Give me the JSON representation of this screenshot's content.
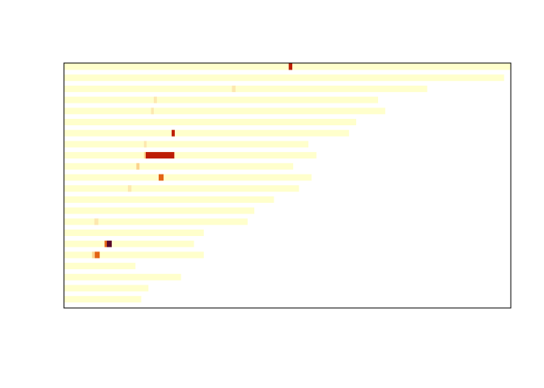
{
  "chart_data": {
    "type": "heatmap",
    "title": "",
    "xlabel": "",
    "ylabel": "",
    "grid": false,
    "legend": "none",
    "xlim": [
      0,
      100
    ],
    "colors": {
      "base": "#ffffcc",
      "pale": "#fde8b0",
      "light": "#fbd38d",
      "orange": "#e36414",
      "red": "#bd1e05",
      "dark": "#5a0a2a"
    },
    "rows": [
      {
        "length": 100,
        "marks": [
          {
            "start": 50.3,
            "end": 51.1,
            "color": "red"
          }
        ]
      },
      {
        "length": 98.5,
        "marks": []
      },
      {
        "length": 81.3,
        "marks": [
          {
            "start": 37.6,
            "end": 38.4,
            "color": "pale"
          }
        ]
      },
      {
        "length": 70.3,
        "marks": [
          {
            "start": 20.1,
            "end": 20.8,
            "color": "pale"
          }
        ]
      },
      {
        "length": 71.9,
        "marks": [
          {
            "start": 19.5,
            "end": 20.1,
            "color": "pale"
          }
        ]
      },
      {
        "length": 65.4,
        "marks": []
      },
      {
        "length": 63.8,
        "marks": [
          {
            "start": 24.1,
            "end": 24.8,
            "color": "red"
          }
        ]
      },
      {
        "length": 54.7,
        "marks": [
          {
            "start": 17.9,
            "end": 18.5,
            "color": "pale"
          }
        ]
      },
      {
        "length": 56.5,
        "marks": [
          {
            "start": 17.9,
            "end": 18.3,
            "color": "light"
          },
          {
            "start": 18.3,
            "end": 24.7,
            "color": "red"
          }
        ]
      },
      {
        "length": 51.3,
        "marks": [
          {
            "start": 16.2,
            "end": 16.9,
            "color": "light"
          }
        ]
      },
      {
        "length": 55.4,
        "marks": [
          {
            "start": 21.2,
            "end": 22.3,
            "color": "orange"
          }
        ]
      },
      {
        "length": 52.6,
        "marks": [
          {
            "start": 14.3,
            "end": 15.1,
            "color": "pale"
          }
        ]
      },
      {
        "length": 47.0,
        "marks": []
      },
      {
        "length": 42.6,
        "marks": []
      },
      {
        "length": 41.1,
        "marks": [
          {
            "start": 6.8,
            "end": 7.7,
            "color": "pale"
          }
        ]
      },
      {
        "length": 31.3,
        "marks": []
      },
      {
        "length": 29.1,
        "marks": [
          {
            "start": 9.1,
            "end": 9.6,
            "color": "orange"
          },
          {
            "start": 9.6,
            "end": 10.7,
            "color": "dark"
          }
        ]
      },
      {
        "length": 31.3,
        "marks": [
          {
            "start": 6.3,
            "end": 6.9,
            "color": "light"
          },
          {
            "start": 6.9,
            "end": 8.0,
            "color": "orange"
          }
        ]
      },
      {
        "length": 16.0,
        "marks": []
      },
      {
        "length": 26.2,
        "marks": []
      },
      {
        "length": 18.9,
        "marks": []
      },
      {
        "length": 17.3,
        "marks": []
      }
    ]
  }
}
